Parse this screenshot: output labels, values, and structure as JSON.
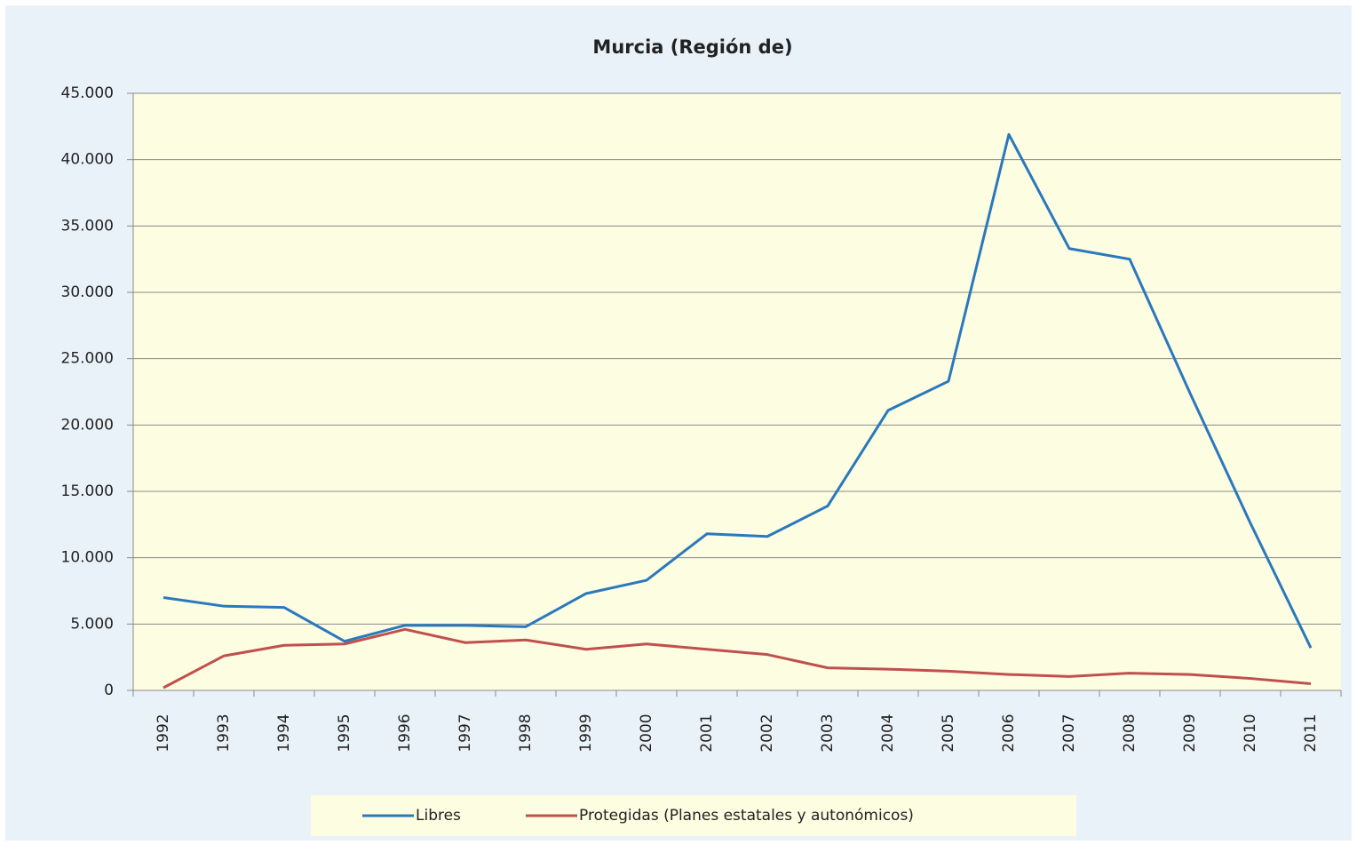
{
  "chart_data": {
    "type": "line",
    "title": "Murcia (Región de)",
    "categories": [
      "1992",
      "1993",
      "1994",
      "1995",
      "1996",
      "1997",
      "1998",
      "1999",
      "2000",
      "2001",
      "2002",
      "2003",
      "2004",
      "2005",
      "2006",
      "2007",
      "2008",
      "2009",
      "2010",
      "2011"
    ],
    "series": [
      {
        "name": "Libres",
        "color": "#2a78bd",
        "values": [
          7000,
          6350,
          6250,
          3700,
          4900,
          4900,
          4800,
          7300,
          8300,
          11800,
          11600,
          13900,
          21100,
          23300,
          41900,
          33300,
          32500,
          22400,
          12600,
          3200
        ]
      },
      {
        "name": "Protegidas (Planes estatales y autonómicos)",
        "color": "#c0504d",
        "values": [
          200,
          2600,
          3400,
          3500,
          4600,
          3600,
          3800,
          3100,
          3500,
          3100,
          2700,
          1700,
          1600,
          1450,
          1200,
          1050,
          1300,
          1200,
          900,
          500
        ]
      }
    ],
    "ylim": [
      0,
      45000
    ],
    "yticks": [
      0,
      {
        "value": 5000,
        "label": "5.000"
      },
      {
        "value": 10000,
        "label": "10.000"
      },
      {
        "value": 15000,
        "label": "15.000"
      },
      {
        "value": 20000,
        "label": "20.000"
      },
      {
        "value": 25000,
        "label": "25.000"
      },
      {
        "value": 30000,
        "label": "30.000"
      },
      {
        "value": 35000,
        "label": "35.000"
      },
      {
        "value": 40000,
        "label": "40.000"
      },
      {
        "value": 45000,
        "label": "45.000"
      }
    ],
    "grid": true,
    "legend": "bottom"
  }
}
